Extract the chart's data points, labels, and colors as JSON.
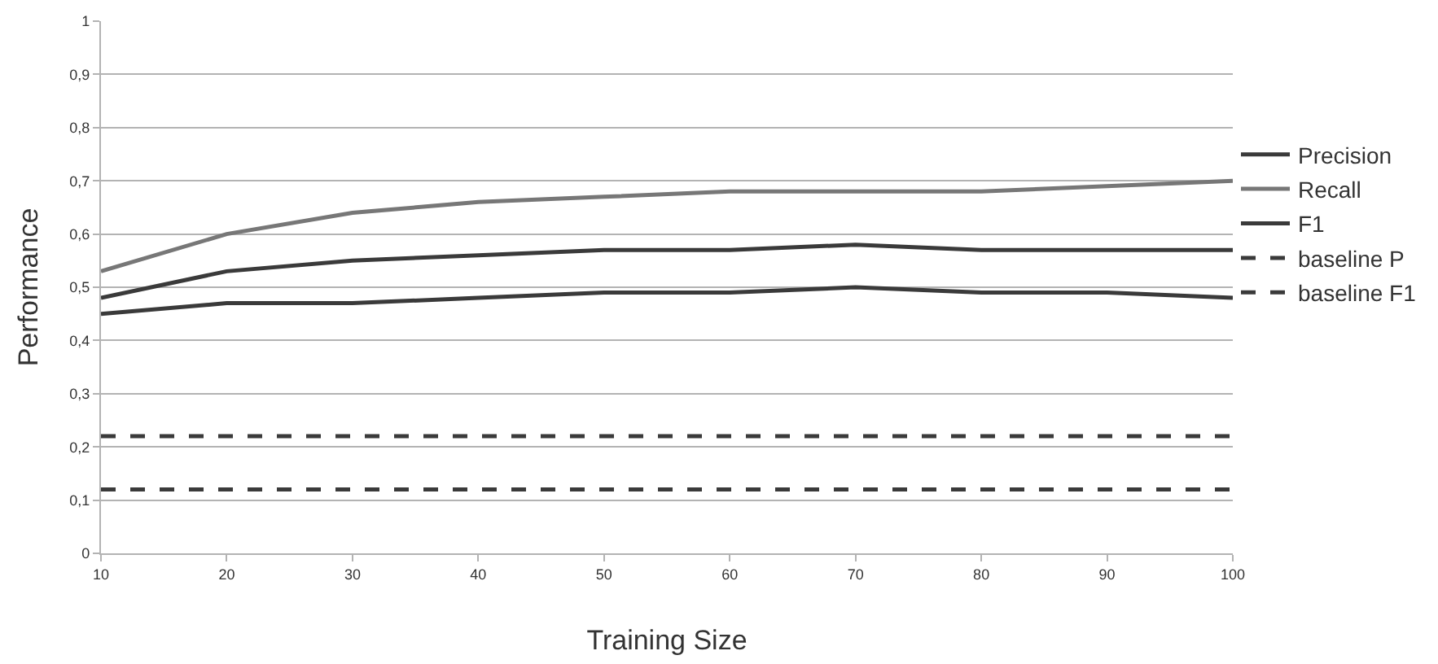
{
  "chart_data": {
    "type": "line",
    "xlabel": "Training Size",
    "ylabel": "Performance",
    "x": [
      10,
      20,
      30,
      40,
      50,
      60,
      70,
      80,
      90,
      100
    ],
    "series": [
      {
        "name": "Precision",
        "color": "#3a3a3a",
        "values": [
          0.45,
          0.47,
          0.47,
          0.48,
          0.49,
          0.49,
          0.5,
          0.49,
          0.49,
          0.48
        ]
      },
      {
        "name": "Recall",
        "color": "#777777",
        "values": [
          0.53,
          0.6,
          0.64,
          0.66,
          0.67,
          0.68,
          0.68,
          0.68,
          0.69,
          0.7
        ]
      },
      {
        "name": "F1",
        "color": "#3a3a3a",
        "values": [
          0.48,
          0.53,
          0.55,
          0.56,
          0.57,
          0.57,
          0.58,
          0.57,
          0.57,
          0.57
        ]
      },
      {
        "name": "baseline P",
        "color": "#3a3a3a",
        "line_style": "dashed",
        "values": [
          0.22,
          0.22,
          0.22,
          0.22,
          0.22,
          0.22,
          0.22,
          0.22,
          0.22,
          0.22
        ]
      },
      {
        "name": "baseline F1",
        "color": "#3a3a3a",
        "line_style": "dashed",
        "values": [
          0.12,
          0.12,
          0.12,
          0.12,
          0.12,
          0.12,
          0.12,
          0.12,
          0.12,
          0.12
        ]
      }
    ],
    "xlim": [
      10,
      100
    ],
    "xticks": [
      10,
      20,
      30,
      40,
      50,
      60,
      70,
      80,
      90,
      100
    ],
    "ylim": [
      0,
      1
    ],
    "yticks": [
      0,
      {
        "value": 0.1,
        "label": "0,1"
      },
      {
        "value": 0.2,
        "label": "0,2"
      },
      {
        "value": 0.3,
        "label": "0,3"
      },
      {
        "value": 0.4,
        "label": "0,4"
      },
      {
        "value": 0.5,
        "label": "0,5"
      },
      {
        "value": 0.6,
        "label": "0,6"
      },
      {
        "value": 0.7,
        "label": "0,7"
      },
      {
        "value": 0.8,
        "label": "0,8"
      },
      {
        "value": 0.9,
        "label": "0,9"
      },
      1
    ],
    "grid": "y",
    "legend": "right",
    "marker": "none",
    "line_style": "solid"
  }
}
